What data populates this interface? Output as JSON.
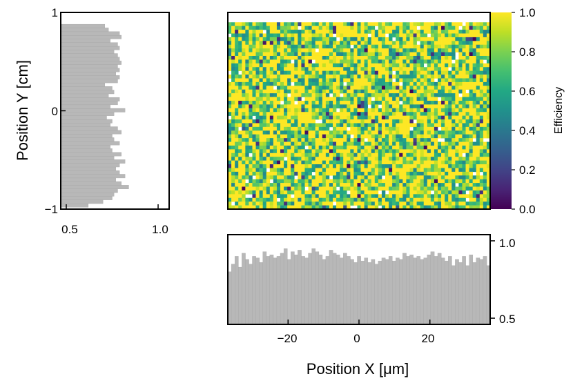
{
  "chart_data": [
    {
      "type": "bar",
      "orientation": "horizontal",
      "role": "y-projection",
      "ylabel": "Position Y [cm]",
      "ylim": [
        -1,
        1
      ],
      "xlim": [
        0.47,
        1.06
      ],
      "yticks": [
        "−1",
        "0",
        "1"
      ],
      "xticks": [
        "0.5",
        "1.0"
      ],
      "bar_color": "#b8b8b8",
      "bins": 50,
      "values": [
        0.62,
        0.7,
        0.75,
        0.76,
        0.78,
        0.84,
        0.8,
        0.77,
        0.82,
        0.79,
        0.77,
        0.79,
        0.82,
        0.76,
        0.8,
        0.75,
        0.74,
        0.79,
        0.76,
        0.75,
        0.8,
        0.78,
        0.74,
        0.75,
        0.72,
        0.76,
        0.82,
        0.74,
        0.78,
        0.79,
        0.73,
        0.76,
        0.75,
        0.71,
        0.78,
        0.79,
        0.77,
        0.79,
        0.78,
        0.8,
        0.79,
        0.78,
        0.76,
        0.79,
        0.78,
        0.74,
        0.8,
        0.79,
        0.73,
        0.71
      ]
    },
    {
      "type": "heatmap",
      "role": "efficiency-map",
      "colormap": "viridis",
      "colorbar_label": "Efficiency",
      "clim": [
        0,
        1
      ],
      "colorbar_ticks": [
        "0.0",
        "0.2",
        "0.4",
        "0.6",
        "0.8",
        "1.0"
      ],
      "x_range": [
        -37,
        37
      ],
      "y_range": [
        -1,
        1
      ],
      "grid_cols": 75,
      "grid_rows": 50,
      "seed": 20240611
    },
    {
      "type": "bar",
      "orientation": "vertical",
      "role": "x-projection",
      "xlabel": "Position X [μm]",
      "xlim": [
        -37,
        37
      ],
      "ylim": [
        0.46,
        1.04
      ],
      "xticks": [
        "−20",
        "0",
        "20"
      ],
      "yticks": [
        "0.5",
        "1.0"
      ],
      "bar_color": "#b8b8b8",
      "bins": 75,
      "values": [
        0.8,
        0.85,
        0.9,
        0.83,
        0.92,
        0.88,
        0.85,
        0.9,
        0.89,
        0.86,
        0.93,
        0.9,
        0.91,
        0.89,
        0.9,
        0.92,
        0.95,
        0.88,
        0.93,
        0.91,
        0.94,
        0.9,
        0.89,
        0.92,
        0.95,
        0.93,
        0.91,
        0.88,
        0.9,
        0.94,
        0.92,
        0.91,
        0.89,
        0.92,
        0.9,
        0.88,
        0.86,
        0.9,
        0.87,
        0.89,
        0.86,
        0.88,
        0.85,
        0.87,
        0.89,
        0.88,
        0.9,
        0.87,
        0.89,
        0.88,
        0.92,
        0.9,
        0.91,
        0.89,
        0.9,
        0.88,
        0.89,
        0.91,
        0.93,
        0.9,
        0.92,
        0.89,
        0.87,
        0.9,
        0.84,
        0.88,
        0.86,
        0.9,
        0.84,
        0.91,
        0.86,
        0.89,
        0.88,
        0.9,
        0.84
      ]
    }
  ]
}
